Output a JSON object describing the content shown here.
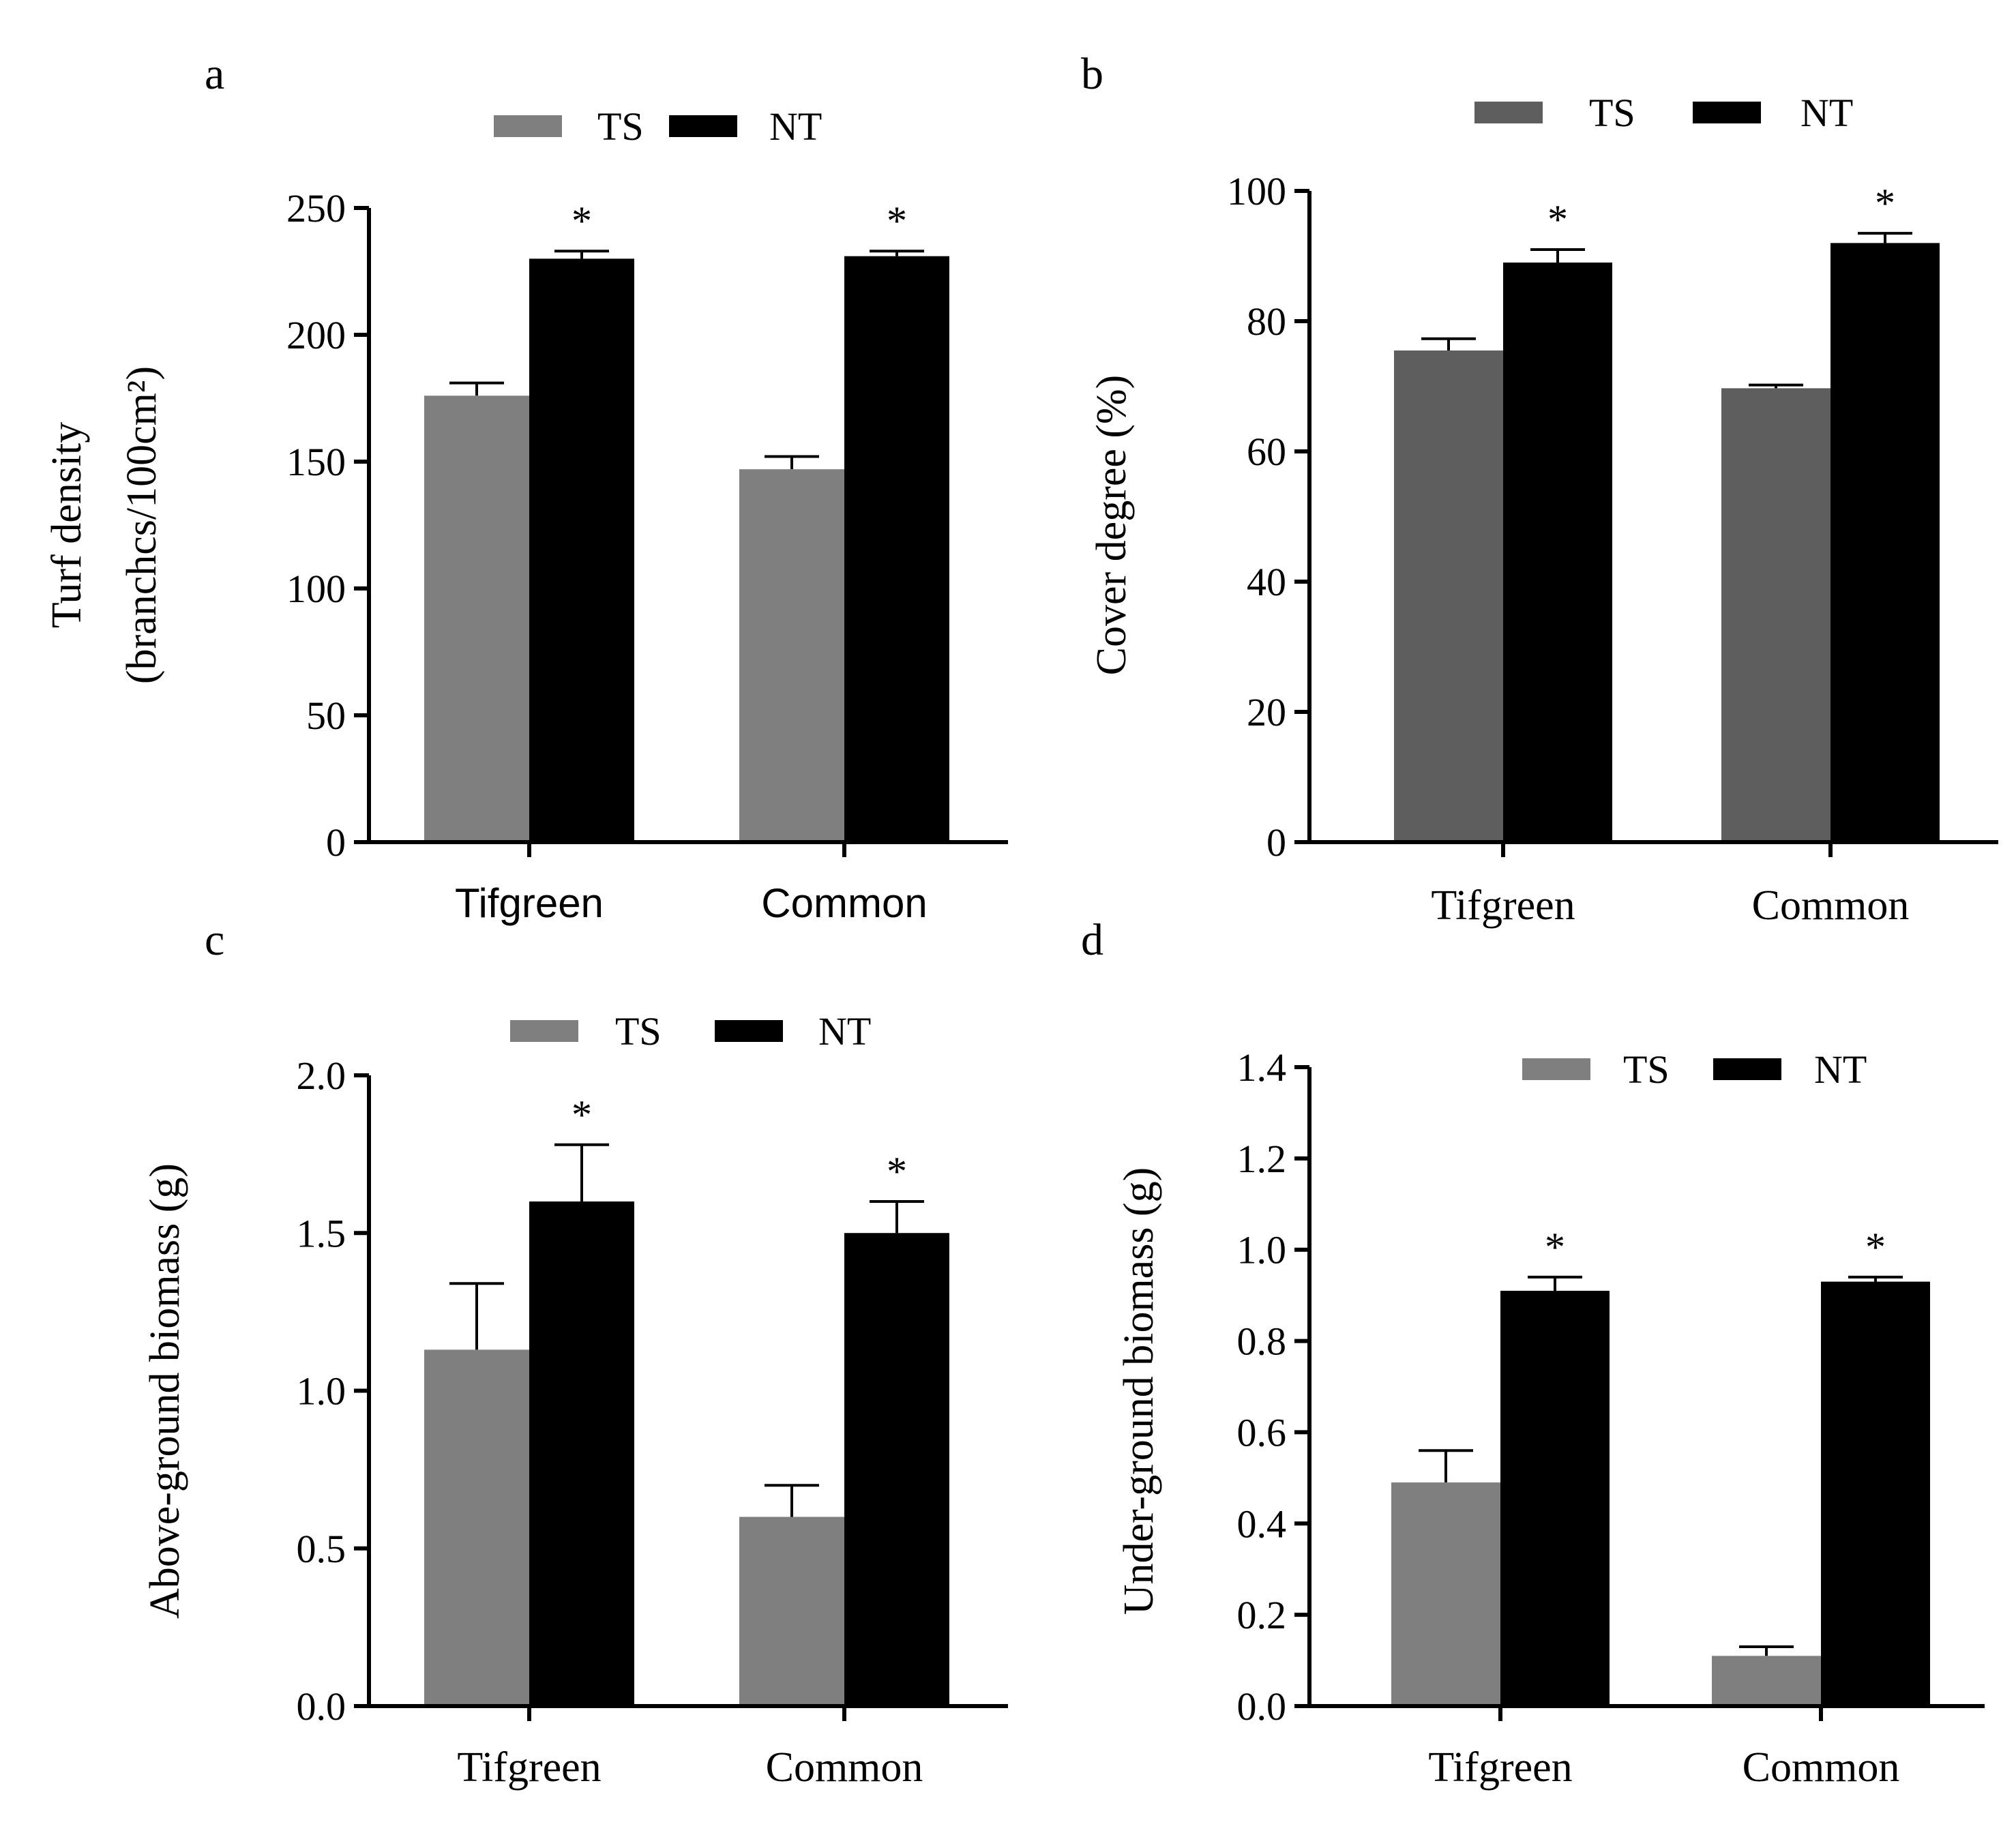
{
  "colors": {
    "TS_light": "#7f7f7f",
    "TS_dark": "#5e5e5e",
    "NT": "#000000",
    "axis": "#000000"
  },
  "chart_data": [
    {
      "type": "bar",
      "panel_label": "a",
      "categories": [
        "Tifgreen",
        "Common"
      ],
      "series": [
        {
          "name": "TS",
          "values": [
            176,
            147
          ],
          "errors": [
            5,
            5
          ]
        },
        {
          "name": "NT",
          "values": [
            230,
            231
          ],
          "errors": [
            3,
            2
          ]
        }
      ],
      "significance": [
        "*",
        "*"
      ],
      "ylabel_lines": [
        "Turf density",
        "(branchcs/100cm²)"
      ],
      "ylim": [
        0,
        250
      ],
      "yticks": [
        0,
        50,
        100,
        150,
        200,
        250
      ],
      "ytick_labels": [
        "0",
        "50",
        "100",
        "150",
        "200",
        "250"
      ],
      "legend": "top-center",
      "grid": false
    },
    {
      "type": "bar",
      "panel_label": "b",
      "categories": [
        "Tifgreen",
        "Common"
      ],
      "series": [
        {
          "name": "TS",
          "values": [
            75.5,
            69.7
          ],
          "errors": [
            1.8,
            0.5
          ]
        },
        {
          "name": "NT",
          "values": [
            89.0,
            92.0
          ],
          "errors": [
            2.0,
            1.5
          ]
        }
      ],
      "significance": [
        "*",
        "*"
      ],
      "ylabel_lines": [
        "Cover degree (%)"
      ],
      "ylim": [
        0,
        100
      ],
      "yticks": [
        0,
        20,
        40,
        60,
        80,
        100
      ],
      "ytick_labels": [
        "0",
        "20",
        "40",
        "60",
        "80",
        "100"
      ],
      "legend": "top-center",
      "grid": false
    },
    {
      "type": "bar",
      "panel_label": "c",
      "categories": [
        "Tifgreen",
        "Common"
      ],
      "series": [
        {
          "name": "TS",
          "values": [
            1.13,
            0.6
          ],
          "errors": [
            0.21,
            0.1
          ]
        },
        {
          "name": "NT",
          "values": [
            1.6,
            1.5
          ],
          "errors": [
            0.18,
            0.1
          ]
        }
      ],
      "significance": [
        "*",
        "*"
      ],
      "ylabel_lines": [
        "Above-ground biomass (g)"
      ],
      "ylim": [
        0,
        2.0
      ],
      "yticks": [
        0,
        0.5,
        1.0,
        1.5,
        2.0
      ],
      "ytick_labels": [
        "0.0",
        "0.5",
        "1.0",
        "1.5",
        "2.0"
      ],
      "legend": "top-center",
      "grid": false
    },
    {
      "type": "bar",
      "panel_label": "d",
      "categories": [
        "Tifgreen",
        "Common"
      ],
      "series": [
        {
          "name": "TS",
          "values": [
            0.49,
            0.11
          ],
          "errors": [
            0.07,
            0.02
          ]
        },
        {
          "name": "NT",
          "values": [
            0.91,
            0.93
          ],
          "errors": [
            0.03,
            0.01
          ]
        }
      ],
      "significance": [
        "*",
        "*"
      ],
      "ylabel_lines": [
        "Under-ground biomass (g)"
      ],
      "ylim": [
        0,
        1.4
      ],
      "yticks": [
        0,
        0.2,
        0.4,
        0.6,
        0.8,
        1.0,
        1.2,
        1.4
      ],
      "ytick_labels": [
        "0.0",
        "0.2",
        "0.4",
        "0.6",
        "0.8",
        "1.0",
        "1.2",
        "1.4"
      ],
      "legend": "top-center",
      "grid": false
    }
  ]
}
